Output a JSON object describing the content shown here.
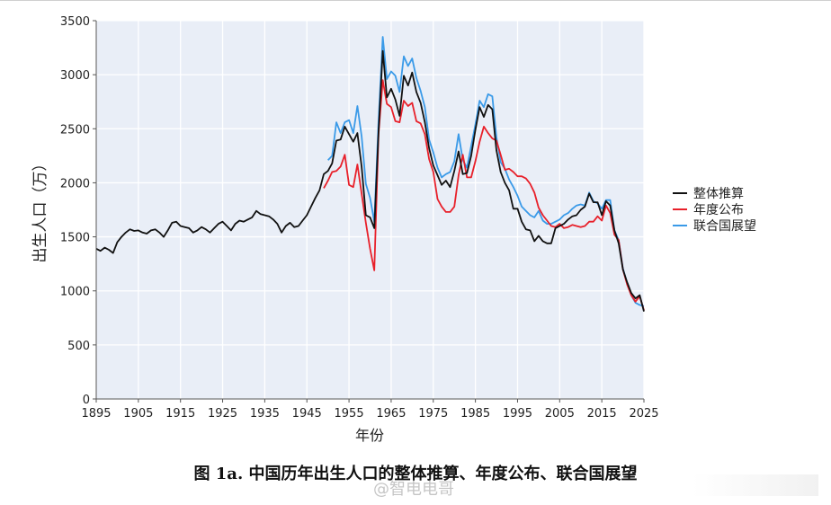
{
  "caption": "图 1a.  中国历年出生人口的整体推算、年度公布、联合国展望",
  "watermark": "@智电电哥",
  "chart_data": {
    "type": "line",
    "title": "",
    "xlabel": "年份",
    "ylabel": "出生人口（万）",
    "xlim": [
      1895,
      2025
    ],
    "ylim": [
      0,
      3500
    ],
    "xticks": [
      1895,
      1905,
      1915,
      1925,
      1935,
      1945,
      1955,
      1965,
      1975,
      1985,
      1995,
      2005,
      2015,
      2025
    ],
    "yticks": [
      0,
      500,
      1000,
      1500,
      2000,
      2500,
      3000,
      3500
    ],
    "grid": true,
    "legend_position": "right",
    "series": [
      {
        "name": "整体推算",
        "color": "#111111",
        "points": [
          [
            1895,
            1390
          ],
          [
            1896,
            1370
          ],
          [
            1897,
            1400
          ],
          [
            1898,
            1380
          ],
          [
            1899,
            1350
          ],
          [
            1900,
            1450
          ],
          [
            1901,
            1500
          ],
          [
            1902,
            1540
          ],
          [
            1903,
            1570
          ],
          [
            1904,
            1555
          ],
          [
            1905,
            1560
          ],
          [
            1906,
            1540
          ],
          [
            1907,
            1530
          ],
          [
            1908,
            1560
          ],
          [
            1909,
            1570
          ],
          [
            1910,
            1540
          ],
          [
            1911,
            1500
          ],
          [
            1912,
            1560
          ],
          [
            1913,
            1630
          ],
          [
            1914,
            1640
          ],
          [
            1915,
            1600
          ],
          [
            1916,
            1590
          ],
          [
            1917,
            1580
          ],
          [
            1918,
            1540
          ],
          [
            1919,
            1560
          ],
          [
            1920,
            1590
          ],
          [
            1921,
            1570
          ],
          [
            1922,
            1540
          ],
          [
            1923,
            1580
          ],
          [
            1924,
            1620
          ],
          [
            1925,
            1640
          ],
          [
            1926,
            1600
          ],
          [
            1927,
            1560
          ],
          [
            1928,
            1620
          ],
          [
            1929,
            1650
          ],
          [
            1930,
            1640
          ],
          [
            1931,
            1660
          ],
          [
            1932,
            1680
          ],
          [
            1933,
            1740
          ],
          [
            1934,
            1710
          ],
          [
            1935,
            1700
          ],
          [
            1936,
            1690
          ],
          [
            1937,
            1660
          ],
          [
            1938,
            1620
          ],
          [
            1939,
            1540
          ],
          [
            1940,
            1600
          ],
          [
            1941,
            1630
          ],
          [
            1942,
            1590
          ],
          [
            1943,
            1600
          ],
          [
            1944,
            1650
          ],
          [
            1945,
            1700
          ],
          [
            1946,
            1780
          ],
          [
            1947,
            1860
          ],
          [
            1948,
            1930
          ],
          [
            1949,
            2080
          ],
          [
            1950,
            2110
          ],
          [
            1951,
            2180
          ],
          [
            1952,
            2390
          ],
          [
            1953,
            2400
          ],
          [
            1954,
            2520
          ],
          [
            1955,
            2450
          ],
          [
            1956,
            2380
          ],
          [
            1957,
            2460
          ],
          [
            1958,
            2150
          ],
          [
            1959,
            1700
          ],
          [
            1960,
            1680
          ],
          [
            1961,
            1580
          ],
          [
            1962,
            2470
          ],
          [
            1963,
            3220
          ],
          [
            1964,
            2790
          ],
          [
            1965,
            2870
          ],
          [
            1966,
            2770
          ],
          [
            1967,
            2620
          ],
          [
            1968,
            2990
          ],
          [
            1969,
            2900
          ],
          [
            1970,
            3020
          ],
          [
            1971,
            2840
          ],
          [
            1972,
            2740
          ],
          [
            1973,
            2560
          ],
          [
            1974,
            2320
          ],
          [
            1975,
            2160
          ],
          [
            1976,
            2070
          ],
          [
            1977,
            1980
          ],
          [
            1978,
            2020
          ],
          [
            1979,
            1960
          ],
          [
            1980,
            2110
          ],
          [
            1981,
            2290
          ],
          [
            1982,
            2080
          ],
          [
            1983,
            2090
          ],
          [
            1984,
            2250
          ],
          [
            1985,
            2490
          ],
          [
            1986,
            2700
          ],
          [
            1987,
            2610
          ],
          [
            1988,
            2720
          ],
          [
            1989,
            2680
          ],
          [
            1990,
            2300
          ],
          [
            1991,
            2100
          ],
          [
            1992,
            2000
          ],
          [
            1993,
            1930
          ],
          [
            1994,
            1760
          ],
          [
            1995,
            1760
          ],
          [
            1996,
            1640
          ],
          [
            1997,
            1570
          ],
          [
            1998,
            1560
          ],
          [
            1999,
            1460
          ],
          [
            2000,
            1510
          ],
          [
            2001,
            1460
          ],
          [
            2002,
            1440
          ],
          [
            2003,
            1440
          ],
          [
            2004,
            1580
          ],
          [
            2005,
            1600
          ],
          [
            2006,
            1620
          ],
          [
            2007,
            1660
          ],
          [
            2008,
            1690
          ],
          [
            2009,
            1700
          ],
          [
            2010,
            1750
          ],
          [
            2011,
            1780
          ],
          [
            2012,
            1900
          ],
          [
            2013,
            1820
          ],
          [
            2014,
            1820
          ],
          [
            2015,
            1700
          ],
          [
            2016,
            1830
          ],
          [
            2017,
            1790
          ],
          [
            2018,
            1560
          ],
          [
            2019,
            1440
          ],
          [
            2020,
            1200
          ],
          [
            2021,
            1080
          ],
          [
            2022,
            980
          ],
          [
            2023,
            930
          ],
          [
            2024,
            960
          ],
          [
            2025,
            810
          ]
        ]
      },
      {
        "name": "年度公布",
        "color": "#e8202a",
        "points": [
          [
            1949,
            1950
          ],
          [
            1950,
            2020
          ],
          [
            1951,
            2100
          ],
          [
            1952,
            2110
          ],
          [
            1953,
            2150
          ],
          [
            1954,
            2260
          ],
          [
            1955,
            1980
          ],
          [
            1956,
            1960
          ],
          [
            1957,
            2170
          ],
          [
            1958,
            1900
          ],
          [
            1959,
            1630
          ],
          [
            1960,
            1390
          ],
          [
            1961,
            1190
          ],
          [
            1962,
            2450
          ],
          [
            1963,
            2950
          ],
          [
            1964,
            2730
          ],
          [
            1965,
            2700
          ],
          [
            1966,
            2570
          ],
          [
            1967,
            2560
          ],
          [
            1968,
            2760
          ],
          [
            1969,
            2710
          ],
          [
            1970,
            2740
          ],
          [
            1971,
            2570
          ],
          [
            1972,
            2550
          ],
          [
            1973,
            2450
          ],
          [
            1974,
            2220
          ],
          [
            1975,
            2100
          ],
          [
            1976,
            1850
          ],
          [
            1977,
            1780
          ],
          [
            1978,
            1730
          ],
          [
            1979,
            1730
          ],
          [
            1980,
            1780
          ],
          [
            1981,
            2070
          ],
          [
            1982,
            2260
          ],
          [
            1983,
            2050
          ],
          [
            1984,
            2050
          ],
          [
            1985,
            2200
          ],
          [
            1986,
            2380
          ],
          [
            1987,
            2520
          ],
          [
            1988,
            2460
          ],
          [
            1989,
            2410
          ],
          [
            1990,
            2390
          ],
          [
            1991,
            2260
          ],
          [
            1992,
            2120
          ],
          [
            1993,
            2130
          ],
          [
            1994,
            2100
          ],
          [
            1995,
            2060
          ],
          [
            1996,
            2060
          ],
          [
            1997,
            2040
          ],
          [
            1998,
            1990
          ],
          [
            1999,
            1910
          ],
          [
            2000,
            1770
          ],
          [
            2001,
            1700
          ],
          [
            2002,
            1650
          ],
          [
            2003,
            1600
          ],
          [
            2004,
            1590
          ],
          [
            2005,
            1620
          ],
          [
            2006,
            1580
          ],
          [
            2007,
            1590
          ],
          [
            2008,
            1610
          ],
          [
            2009,
            1600
          ],
          [
            2010,
            1590
          ],
          [
            2011,
            1600
          ],
          [
            2012,
            1640
          ],
          [
            2013,
            1640
          ],
          [
            2014,
            1690
          ],
          [
            2015,
            1650
          ],
          [
            2016,
            1790
          ],
          [
            2017,
            1720
          ],
          [
            2018,
            1520
          ],
          [
            2019,
            1470
          ],
          [
            2020,
            1200
          ],
          [
            2021,
            1060
          ],
          [
            2022,
            960
          ],
          [
            2023,
            900
          ],
          [
            2024,
            950
          ],
          [
            2025,
            820
          ]
        ]
      },
      {
        "name": "联合国展望",
        "color": "#3a9ae8",
        "points": [
          [
            1950,
            2210
          ],
          [
            1951,
            2250
          ],
          [
            1952,
            2560
          ],
          [
            1953,
            2460
          ],
          [
            1954,
            2560
          ],
          [
            1955,
            2580
          ],
          [
            1956,
            2460
          ],
          [
            1957,
            2710
          ],
          [
            1958,
            2430
          ],
          [
            1959,
            1990
          ],
          [
            1960,
            1860
          ],
          [
            1961,
            1640
          ],
          [
            1962,
            2570
          ],
          [
            1963,
            3350
          ],
          [
            1964,
            2960
          ],
          [
            1965,
            3030
          ],
          [
            1966,
            2990
          ],
          [
            1967,
            2840
          ],
          [
            1968,
            3170
          ],
          [
            1969,
            3080
          ],
          [
            1970,
            3150
          ],
          [
            1971,
            2970
          ],
          [
            1972,
            2850
          ],
          [
            1973,
            2700
          ],
          [
            1974,
            2400
          ],
          [
            1975,
            2280
          ],
          [
            1976,
            2140
          ],
          [
            1977,
            2050
          ],
          [
            1978,
            2080
          ],
          [
            1979,
            2100
          ],
          [
            1980,
            2200
          ],
          [
            1981,
            2450
          ],
          [
            1982,
            2210
          ],
          [
            1983,
            2140
          ],
          [
            1984,
            2340
          ],
          [
            1985,
            2540
          ],
          [
            1986,
            2760
          ],
          [
            1987,
            2700
          ],
          [
            1988,
            2820
          ],
          [
            1989,
            2800
          ],
          [
            1990,
            2420
          ],
          [
            1991,
            2190
          ],
          [
            1992,
            2130
          ],
          [
            1993,
            2030
          ],
          [
            1994,
            1960
          ],
          [
            1995,
            1880
          ],
          [
            1996,
            1780
          ],
          [
            1997,
            1740
          ],
          [
            1998,
            1700
          ],
          [
            1999,
            1680
          ],
          [
            2000,
            1740
          ],
          [
            2001,
            1650
          ],
          [
            2002,
            1620
          ],
          [
            2003,
            1620
          ],
          [
            2004,
            1640
          ],
          [
            2005,
            1660
          ],
          [
            2006,
            1700
          ],
          [
            2007,
            1720
          ],
          [
            2008,
            1760
          ],
          [
            2009,
            1790
          ],
          [
            2010,
            1800
          ],
          [
            2011,
            1790
          ],
          [
            2012,
            1910
          ],
          [
            2013,
            1830
          ],
          [
            2014,
            1810
          ],
          [
            2015,
            1760
          ],
          [
            2016,
            1840
          ],
          [
            2017,
            1840
          ],
          [
            2018,
            1560
          ],
          [
            2019,
            1470
          ],
          [
            2020,
            1210
          ],
          [
            2021,
            1070
          ],
          [
            2022,
            960
          ],
          [
            2023,
            890
          ],
          [
            2024,
            870
          ],
          [
            2025,
            860
          ]
        ]
      }
    ]
  }
}
